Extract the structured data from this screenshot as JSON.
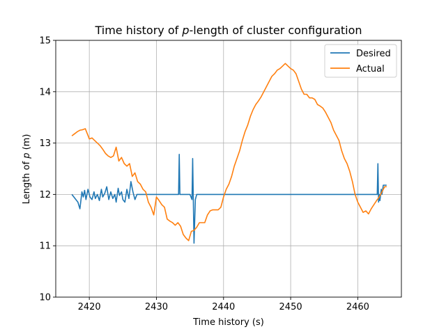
{
  "chart_data": {
    "type": "line",
    "title": "Time history of p-length of cluster configuration",
    "title_parts": {
      "prefix": "Time history of ",
      "symbol": "p",
      "suffix": "-length of cluster configuration"
    },
    "xlabel": "Time history (s)",
    "ylabel": "Length of p (m)",
    "ylabel_parts": {
      "prefix": "Length of ",
      "symbol": "p",
      "suffix": " (m)"
    },
    "xlim": [
      2415,
      2466.5
    ],
    "ylim": [
      10,
      15
    ],
    "xticks": [
      2420,
      2430,
      2440,
      2450,
      2460
    ],
    "yticks": [
      10,
      11,
      12,
      13,
      14,
      15
    ],
    "grid": true,
    "legend_position": "top-right",
    "series": [
      {
        "name": "Desired",
        "color": "#1f77b4",
        "x": [
          2417.4,
          2418.3,
          2418.6,
          2418.9,
          2419.1,
          2419.3,
          2419.5,
          2419.8,
          2420.1,
          2420.4,
          2420.7,
          2420.9,
          2421.2,
          2421.5,
          2421.8,
          2422.0,
          2422.3,
          2422.6,
          2422.9,
          2423.2,
          2423.5,
          2423.8,
          2424.0,
          2424.3,
          2424.5,
          2424.8,
          2425.0,
          2425.3,
          2425.6,
          2425.9,
          2426.2,
          2426.5,
          2426.8,
          2427.1,
          2427.5,
          2428.0,
          2429.0,
          2430.0,
          2431.0,
          2432.0,
          2433.0,
          2433.3,
          2433.4,
          2433.5,
          2433.7,
          2435.0,
          2435.3,
          2435.4,
          2435.6,
          2435.8,
          2436.0,
          2437.0,
          2440.0,
          2445.0,
          2450.0,
          2455.0,
          2460.0,
          2462.9,
          2463.0,
          2463.1,
          2463.2,
          2463.3,
          2463.5,
          2463.6,
          2463.8,
          2464.0,
          2464.3
        ],
        "values": [
          12.0,
          11.85,
          11.72,
          12.05,
          11.95,
          12.08,
          11.9,
          12.1,
          11.95,
          11.9,
          12.05,
          11.92,
          12.0,
          11.88,
          12.1,
          11.95,
          12.02,
          12.15,
          11.9,
          12.05,
          11.92,
          12.0,
          11.85,
          12.12,
          11.98,
          12.05,
          11.9,
          11.85,
          12.1,
          11.92,
          12.25,
          12.05,
          11.9,
          12.0,
          12.0,
          12.0,
          12.0,
          12.0,
          12.0,
          12.0,
          12.0,
          12.0,
          12.78,
          12.0,
          12.0,
          12.0,
          11.9,
          12.7,
          11.05,
          11.9,
          12.0,
          12.0,
          12.0,
          12.0,
          12.0,
          12.0,
          12.0,
          12.0,
          12.6,
          11.85,
          12.0,
          11.88,
          12.1,
          12.0,
          12.18,
          12.18,
          12.18
        ]
      },
      {
        "name": "Actual",
        "color": "#ff7f0e",
        "x": [
          2417.4,
          2417.8,
          2418.2,
          2418.6,
          2419.0,
          2419.4,
          2419.8,
          2420.0,
          2420.4,
          2420.8,
          2421.2,
          2421.6,
          2422.0,
          2422.4,
          2422.8,
          2423.2,
          2423.6,
          2424.0,
          2424.4,
          2424.8,
          2425.2,
          2425.6,
          2426.0,
          2426.4,
          2426.8,
          2427.2,
          2427.6,
          2428.0,
          2428.4,
          2428.8,
          2429.2,
          2429.6,
          2430.0,
          2430.4,
          2430.8,
          2431.2,
          2431.6,
          2432.0,
          2432.4,
          2432.8,
          2433.2,
          2433.6,
          2434.0,
          2434.4,
          2434.8,
          2435.2,
          2435.6,
          2436.0,
          2436.4,
          2436.8,
          2437.2,
          2437.6,
          2438.0,
          2438.4,
          2438.8,
          2439.2,
          2439.6,
          2440.0,
          2440.4,
          2440.8,
          2441.2,
          2441.6,
          2442.0,
          2442.4,
          2442.8,
          2443.2,
          2443.6,
          2444.0,
          2444.4,
          2444.8,
          2445.2,
          2445.6,
          2446.0,
          2446.4,
          2446.8,
          2447.2,
          2447.6,
          2448.0,
          2448.4,
          2448.8,
          2449.2,
          2449.6,
          2450.0,
          2450.4,
          2450.8,
          2451.2,
          2451.6,
          2452.0,
          2452.4,
          2452.8,
          2453.2,
          2453.6,
          2454.0,
          2454.4,
          2454.8,
          2455.2,
          2455.6,
          2456.0,
          2456.4,
          2456.8,
          2457.2,
          2457.6,
          2458.0,
          2458.4,
          2458.8,
          2459.2,
          2459.6,
          2460.0,
          2460.4,
          2460.8,
          2461.2,
          2461.6,
          2462.0,
          2462.4,
          2462.8,
          2463.2,
          2463.6,
          2464.0,
          2464.3
        ],
        "values": [
          13.14,
          13.18,
          13.22,
          13.25,
          13.26,
          13.28,
          13.15,
          13.08,
          13.1,
          13.05,
          13.0,
          12.95,
          12.88,
          12.8,
          12.75,
          12.72,
          12.75,
          12.92,
          12.65,
          12.72,
          12.6,
          12.55,
          12.6,
          12.35,
          12.42,
          12.25,
          12.2,
          12.1,
          12.05,
          11.85,
          11.75,
          11.6,
          11.95,
          11.88,
          11.8,
          11.75,
          11.52,
          11.48,
          11.45,
          11.4,
          11.45,
          11.38,
          11.22,
          11.15,
          11.1,
          11.28,
          11.3,
          11.36,
          11.45,
          11.45,
          11.45,
          11.6,
          11.68,
          11.7,
          11.7,
          11.7,
          11.75,
          11.95,
          12.1,
          12.2,
          12.35,
          12.55,
          12.7,
          12.85,
          13.05,
          13.22,
          13.35,
          13.52,
          13.65,
          13.75,
          13.82,
          13.9,
          14.0,
          14.1,
          14.2,
          14.3,
          14.35,
          14.42,
          14.45,
          14.5,
          14.55,
          14.5,
          14.45,
          14.42,
          14.35,
          14.2,
          14.05,
          13.95,
          13.95,
          13.88,
          13.88,
          13.85,
          13.75,
          13.72,
          13.68,
          13.6,
          13.5,
          13.4,
          13.25,
          13.15,
          13.05,
          12.85,
          12.7,
          12.6,
          12.45,
          12.25,
          12.0,
          11.85,
          11.75,
          11.65,
          11.68,
          11.62,
          11.72,
          11.8,
          11.88,
          11.95,
          12.05,
          12.15,
          12.15
        ]
      }
    ]
  }
}
